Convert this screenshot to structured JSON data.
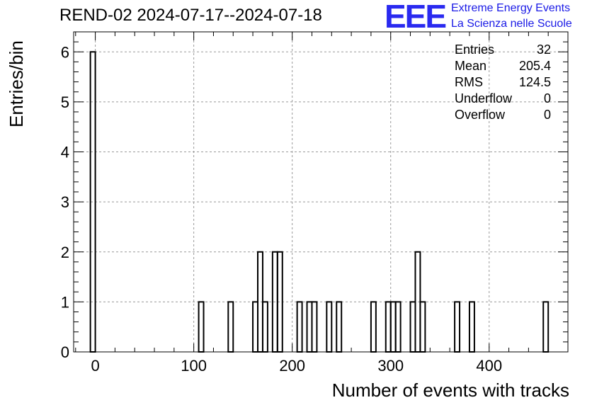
{
  "chart_data": {
    "type": "bar",
    "title": "REND-02 2024-07-17--2024-07-18",
    "xlabel": "Number of events with tracks",
    "ylabel": "Entries/bin",
    "xlim": [
      -22,
      480
    ],
    "ylim": [
      0,
      6.4
    ],
    "grid": true,
    "bin_width": 5,
    "x_ticks": [
      0,
      100,
      200,
      300,
      400
    ],
    "y_ticks": [
      0,
      1,
      2,
      3,
      4,
      5,
      6
    ],
    "bins": [
      {
        "x": -2.5,
        "value": 6
      },
      {
        "x": 107.5,
        "value": 1
      },
      {
        "x": 137.5,
        "value": 1
      },
      {
        "x": 162.5,
        "value": 1
      },
      {
        "x": 167.5,
        "value": 2
      },
      {
        "x": 172.5,
        "value": 1
      },
      {
        "x": 182.5,
        "value": 2
      },
      {
        "x": 187.5,
        "value": 2
      },
      {
        "x": 207.5,
        "value": 1
      },
      {
        "x": 217.5,
        "value": 1
      },
      {
        "x": 222.5,
        "value": 1
      },
      {
        "x": 237.5,
        "value": 1
      },
      {
        "x": 247.5,
        "value": 1
      },
      {
        "x": 282.5,
        "value": 1
      },
      {
        "x": 297.5,
        "value": 1
      },
      {
        "x": 302.5,
        "value": 1
      },
      {
        "x": 307.5,
        "value": 1
      },
      {
        "x": 322.5,
        "value": 1
      },
      {
        "x": 327.5,
        "value": 2
      },
      {
        "x": 332.5,
        "value": 1
      },
      {
        "x": 367.5,
        "value": 1
      },
      {
        "x": 382.5,
        "value": 1
      },
      {
        "x": 457.5,
        "value": 1
      }
    ],
    "stats": [
      {
        "label": "Entries",
        "value": "32"
      },
      {
        "label": "Mean",
        "value": "205.4"
      },
      {
        "label": "RMS",
        "value": "124.5"
      },
      {
        "label": "Underflow",
        "value": "0"
      },
      {
        "label": "Overflow",
        "value": "0"
      }
    ],
    "legend_position": "top-right",
    "line_color": "#000000",
    "grid_color": "#999999"
  },
  "logo": {
    "mark": "EEE",
    "line1": "Extreme Energy Events",
    "line2": "La Scienza nelle Scuole",
    "color": "#1a1ae6"
  }
}
